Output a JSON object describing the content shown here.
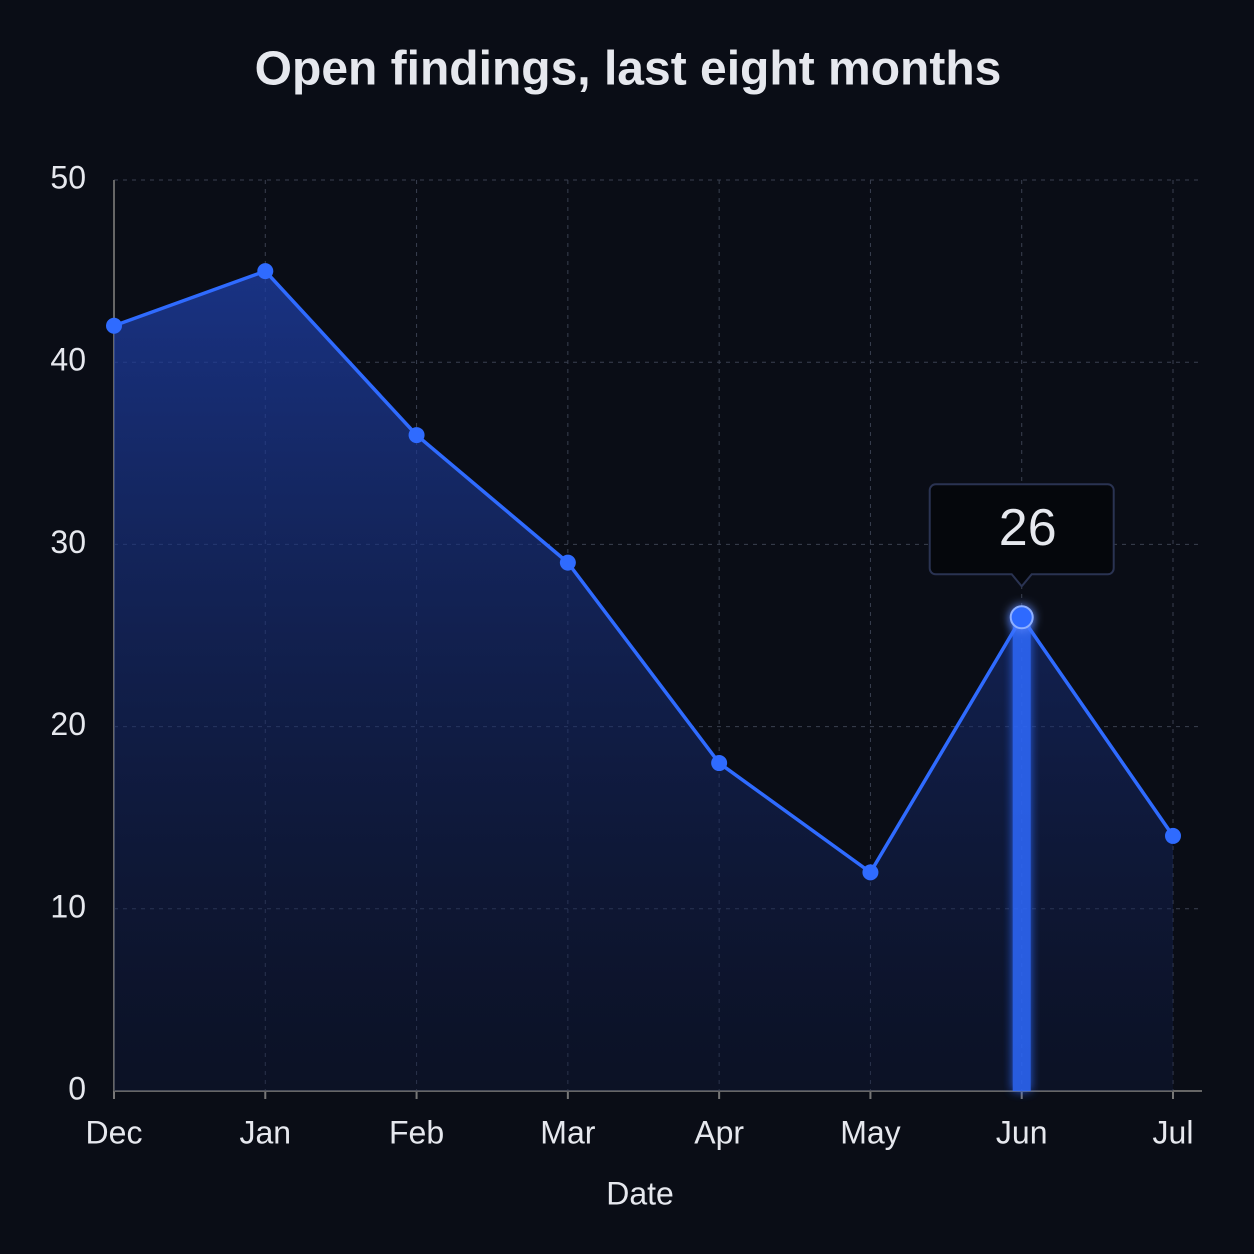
{
  "chart_data": {
    "type": "line",
    "title": "Open findings, last eight months",
    "x_label": "Date",
    "categories": [
      "Dec",
      "Jan",
      "Feb",
      "Mar",
      "Apr",
      "May",
      "Jun",
      "Jul"
    ],
    "values": [
      42,
      45,
      36,
      29,
      18,
      12,
      26,
      14
    ],
    "color": "#2f6bff",
    "ylim": [
      0,
      50
    ],
    "yticks": [
      0,
      10,
      20,
      30,
      40,
      50
    ],
    "grid": true,
    "highlight": "Jun"
  }
}
